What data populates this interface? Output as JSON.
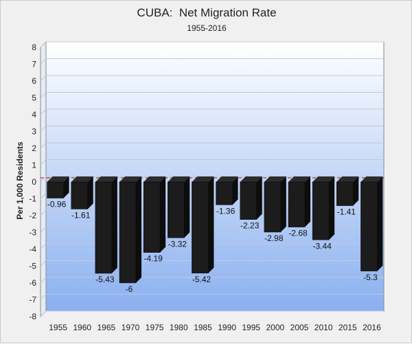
{
  "chart_data": {
    "type": "bar",
    "title": "CUBA:  Net Migration Rate",
    "subtitle": "1955-2016",
    "ylabel": "Per 1,000 Residents",
    "xlabel": "",
    "ylim": [
      -8,
      8
    ],
    "yticks": [
      8,
      7,
      6,
      5,
      4,
      3,
      2,
      1,
      0,
      -1,
      -2,
      -3,
      -4,
      -5,
      -6,
      -7,
      -8
    ],
    "categories": [
      "1955",
      "1960",
      "1965",
      "1970",
      "1975",
      "1980",
      "1985",
      "1990",
      "1995",
      "2000",
      "2005",
      "2010",
      "2015",
      "2016"
    ],
    "values": [
      -0.96,
      -1.61,
      -5.43,
      -6,
      -4.19,
      -3.32,
      -5.42,
      -1.36,
      -2.23,
      -2.98,
      -2.68,
      -3.44,
      -1.41,
      -5.3
    ],
    "labels": [
      "-0.96",
      "-1.61",
      "-5.43",
      "-6",
      "-4.19",
      "-3.32",
      "-5.42",
      "-1.36",
      "-2.23",
      "-2.98",
      "-2.68",
      "-3.44",
      "-1.41",
      "-5.3"
    ],
    "grid": true,
    "zero_line_style": "red dashed",
    "colors": {
      "bar_front": "#1c1c1c",
      "bar_side": "#0d0d0d",
      "bar_top": "#2c2c2c",
      "plot_top": "#ffffff",
      "plot_bottom": "#8ab0f0",
      "zero_line": "#cc0000",
      "grid": "#c0c8d8"
    }
  }
}
